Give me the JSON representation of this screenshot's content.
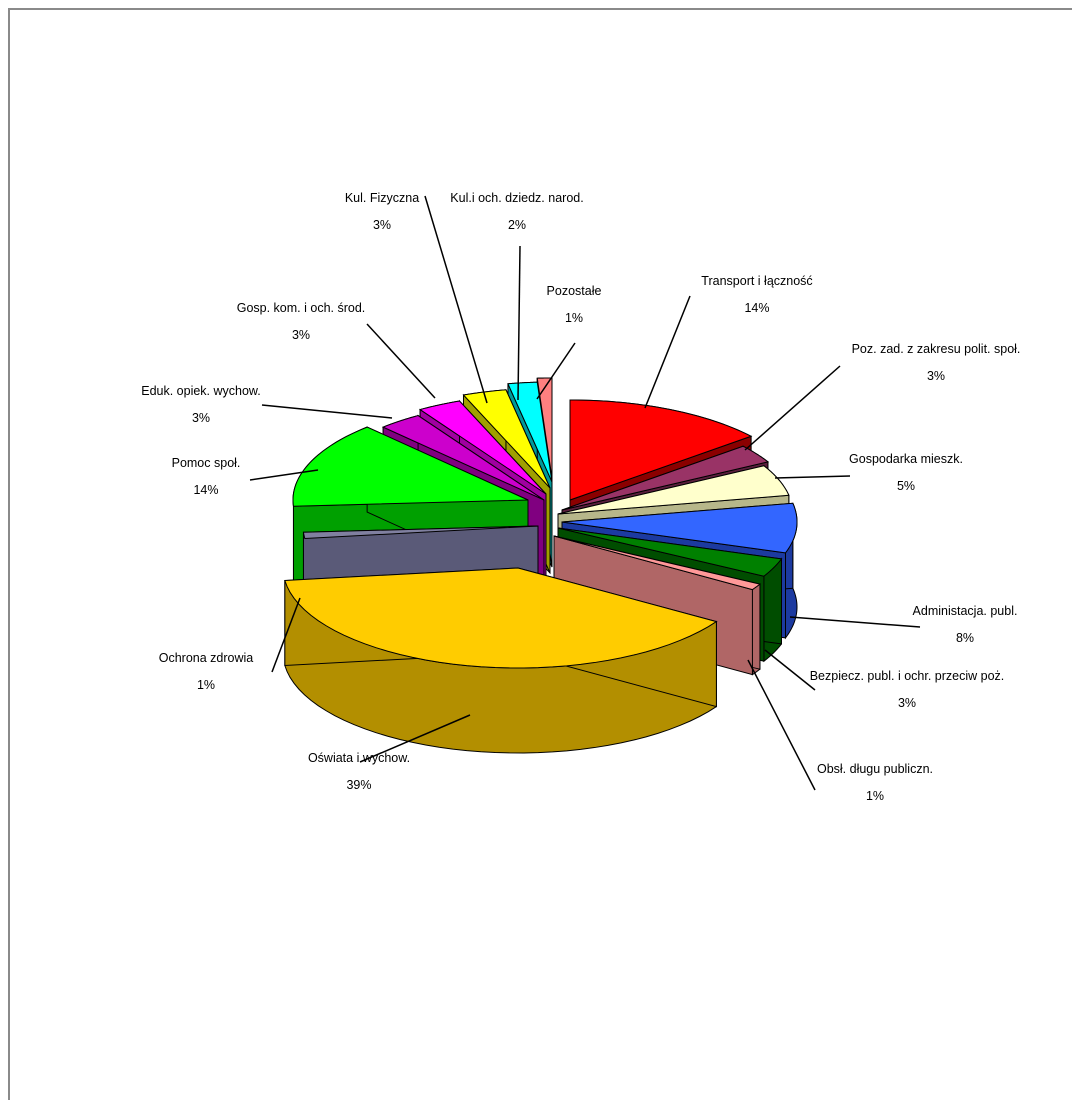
{
  "chart_data": {
    "type": "pie",
    "style": "3d-exploded",
    "series": [
      {
        "slices": [
          {
            "label": "Transport i łączność",
            "value_label": "14%",
            "value": 14,
            "color": "#ff0000",
            "side": "#8b0000"
          },
          {
            "label": "Poz. zad. z zakresu polit. społ.",
            "value_label": "3%",
            "value": 3,
            "color": "#993366",
            "side": "#5a1e3c"
          },
          {
            "label": "Gospodarka mieszk.",
            "value_label": "5%",
            "value": 5,
            "color": "#ffffcc",
            "side": "#b7b78a"
          },
          {
            "label": "Administacja. publ.",
            "value_label": "8%",
            "value": 8,
            "color": "#3366ff",
            "side": "#1c3aa0"
          },
          {
            "label": "Bezpiecz. publ. i ochr. przeciw poż.",
            "value_label": "3%",
            "value": 3,
            "color": "#008000",
            "side": "#004d00"
          },
          {
            "label": "Obsł. długu publiczn.",
            "value_label": "1%",
            "value": 1,
            "color": "#ff9999",
            "side": "#b06666"
          },
          {
            "label": "Oświata i wychow.",
            "value_label": "39%",
            "value": 39,
            "color": "#ffcc00",
            "side": "#b38f00"
          },
          {
            "label": "Ochrona zdrowia",
            "value_label": "1%",
            "value": 1,
            "color": "#8080a0",
            "side": "#5a5a78"
          },
          {
            "label": "Pomoc społ.",
            "value_label": "14%",
            "value": 14,
            "color": "#00ff00",
            "side": "#00a000"
          },
          {
            "label": "Eduk. opiek. wychow.",
            "value_label": "3%",
            "value": 3,
            "color": "#cc00cc",
            "side": "#800080"
          },
          {
            "label": "Gosp. kom. i och. środ.",
            "value_label": "3%",
            "value": 3,
            "color": "#ff00ff",
            "side": "#a000a0"
          },
          {
            "label": "Kul. Fizyczna",
            "value_label": "3%",
            "value": 3,
            "color": "#ffff00",
            "side": "#a0a000"
          },
          {
            "label": "Kul.i och. dziedz. narod.",
            "value_label": "2%",
            "value": 2,
            "color": "#00ffff",
            "side": "#009999"
          },
          {
            "label": "Pozostałe",
            "value_label": "1%",
            "value": 1,
            "color": "#ff8080",
            "side": "#a05050"
          }
        ]
      }
    ],
    "title": "",
    "legend": "none"
  }
}
